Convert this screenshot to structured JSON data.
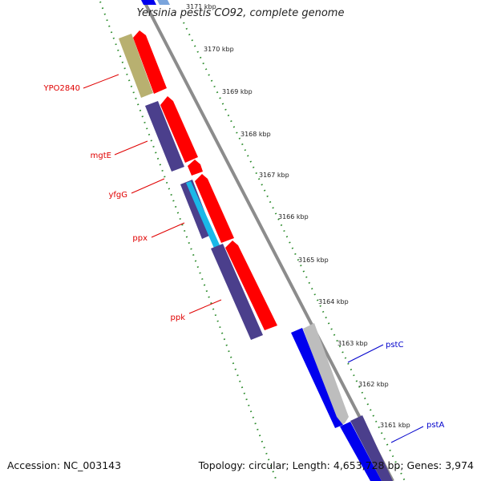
{
  "title": "Yersinia pestis CO92, complete genome",
  "footer": {
    "accession": "Accession: NC_003143",
    "summary": "Topology: circular; Length: 4,653,728 bp; Genes: 3,974"
  },
  "colors": {
    "forward_cds": "#ff0000",
    "reverse_cds": "#4b3f8c",
    "forward_rna": "#0000ee",
    "khaki": "#b8b070",
    "cyan": "#1ab8e8",
    "grey": "#bdbdbd",
    "backbone": "#8c8c8c",
    "tick": "#2a8a2a",
    "label_red": "#e00000",
    "label_blue": "#0000cc"
  },
  "kbp_ticks": [
    "3171 kbp",
    "3170 kbp",
    "3169 kbp",
    "3168 kbp",
    "3167 kbp",
    "3166 kbp",
    "3165 kbp",
    "3164 kbp",
    "3163 kbp",
    "3162 kbp",
    "3161 kbp"
  ],
  "gene_labels": {
    "ypo2840": "YPO2840",
    "mgte": "mgtE",
    "yfgg": "yfgG",
    "ppx": "ppx",
    "ppk": "ppk",
    "pstc": "pstC",
    "psta": "pstA"
  }
}
